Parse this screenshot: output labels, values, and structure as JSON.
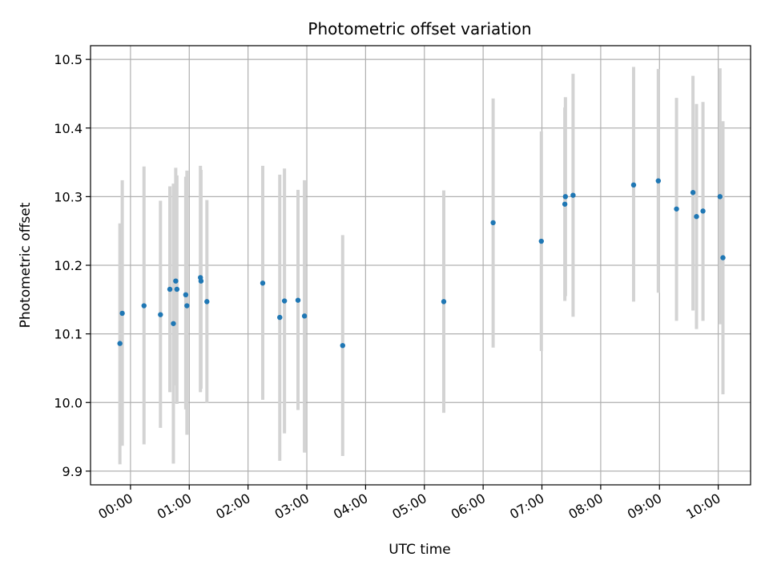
{
  "chart_data": {
    "type": "scatter",
    "title": "Photometric offset variation",
    "xlabel": "UTC time",
    "ylabel": "Photometric offset",
    "x_unit": "hours UTC",
    "xlim": [
      -0.68,
      10.55
    ],
    "ylim": [
      9.88,
      10.52
    ],
    "xticks": [
      {
        "value": 0,
        "label": "00:00"
      },
      {
        "value": 1,
        "label": "01:00"
      },
      {
        "value": 2,
        "label": "02:00"
      },
      {
        "value": 3,
        "label": "03:00"
      },
      {
        "value": 4,
        "label": "04:00"
      },
      {
        "value": 5,
        "label": "05:00"
      },
      {
        "value": 6,
        "label": "06:00"
      },
      {
        "value": 7,
        "label": "07:00"
      },
      {
        "value": 8,
        "label": "08:00"
      },
      {
        "value": 9,
        "label": "09:00"
      },
      {
        "value": 10,
        "label": "10:00"
      }
    ],
    "yticks": [
      {
        "value": 9.9,
        "label": "9.9"
      },
      {
        "value": 10.0,
        "label": "10.0"
      },
      {
        "value": 10.1,
        "label": "10.1"
      },
      {
        "value": 10.2,
        "label": "10.2"
      },
      {
        "value": 10.3,
        "label": "10.3"
      },
      {
        "value": 10.4,
        "label": "10.4"
      },
      {
        "value": 10.5,
        "label": "10.5"
      }
    ],
    "grid": true,
    "marker_color": "#1f77b4",
    "errorbar_color": "#d3d3d3",
    "points": [
      {
        "x": -0.18,
        "y": 10.086,
        "ylo": 9.91,
        "yhi": 10.261
      },
      {
        "x": -0.14,
        "y": 10.13,
        "ylo": 9.937,
        "yhi": 10.324
      },
      {
        "x": 0.23,
        "y": 10.141,
        "ylo": 9.939,
        "yhi": 10.344
      },
      {
        "x": 0.51,
        "y": 10.128,
        "ylo": 9.963,
        "yhi": 10.294
      },
      {
        "x": 0.67,
        "y": 10.165,
        "ylo": 10.015,
        "yhi": 10.315
      },
      {
        "x": 0.73,
        "y": 10.115,
        "ylo": 9.911,
        "yhi": 10.319
      },
      {
        "x": 0.77,
        "y": 10.177,
        "ylo": 10.025,
        "yhi": 10.342
      },
      {
        "x": 0.79,
        "y": 10.165,
        "ylo": 9.998,
        "yhi": 10.331
      },
      {
        "x": 0.94,
        "y": 10.157,
        "ylo": 9.99,
        "yhi": 10.329
      },
      {
        "x": 0.96,
        "y": 10.141,
        "ylo": 9.953,
        "yhi": 10.338
      },
      {
        "x": 1.19,
        "y": 10.182,
        "ylo": 10.015,
        "yhi": 10.345
      },
      {
        "x": 1.2,
        "y": 10.177,
        "ylo": 10.02,
        "yhi": 10.339
      },
      {
        "x": 1.3,
        "y": 10.147,
        "ylo": 9.999,
        "yhi": 10.295
      },
      {
        "x": 2.25,
        "y": 10.174,
        "ylo": 10.004,
        "yhi": 10.345
      },
      {
        "x": 2.54,
        "y": 10.124,
        "ylo": 9.915,
        "yhi": 10.332
      },
      {
        "x": 2.62,
        "y": 10.148,
        "ylo": 9.955,
        "yhi": 10.341
      },
      {
        "x": 2.85,
        "y": 10.149,
        "ylo": 9.989,
        "yhi": 10.31
      },
      {
        "x": 2.96,
        "y": 10.126,
        "ylo": 9.927,
        "yhi": 10.324
      },
      {
        "x": 3.61,
        "y": 10.083,
        "ylo": 9.922,
        "yhi": 10.244
      },
      {
        "x": 5.33,
        "y": 10.147,
        "ylo": 9.985,
        "yhi": 10.309
      },
      {
        "x": 6.17,
        "y": 10.262,
        "ylo": 10.08,
        "yhi": 10.443
      },
      {
        "x": 6.99,
        "y": 10.235,
        "ylo": 10.075,
        "yhi": 10.395
      },
      {
        "x": 7.39,
        "y": 10.289,
        "ylo": 10.148,
        "yhi": 10.43
      },
      {
        "x": 7.4,
        "y": 10.3,
        "ylo": 10.155,
        "yhi": 10.445
      },
      {
        "x": 7.53,
        "y": 10.302,
        "ylo": 10.125,
        "yhi": 10.479
      },
      {
        "x": 8.56,
        "y": 10.317,
        "ylo": 10.147,
        "yhi": 10.489
      },
      {
        "x": 8.98,
        "y": 10.323,
        "ylo": 10.16,
        "yhi": 10.486
      },
      {
        "x": 9.29,
        "y": 10.282,
        "ylo": 10.119,
        "yhi": 10.444
      },
      {
        "x": 9.57,
        "y": 10.306,
        "ylo": 10.134,
        "yhi": 10.476
      },
      {
        "x": 9.63,
        "y": 10.271,
        "ylo": 10.107,
        "yhi": 10.435
      },
      {
        "x": 9.74,
        "y": 10.279,
        "ylo": 10.119,
        "yhi": 10.438
      },
      {
        "x": 10.03,
        "y": 10.3,
        "ylo": 10.114,
        "yhi": 10.487
      },
      {
        "x": 10.08,
        "y": 10.211,
        "ylo": 10.012,
        "yhi": 10.41
      }
    ]
  }
}
